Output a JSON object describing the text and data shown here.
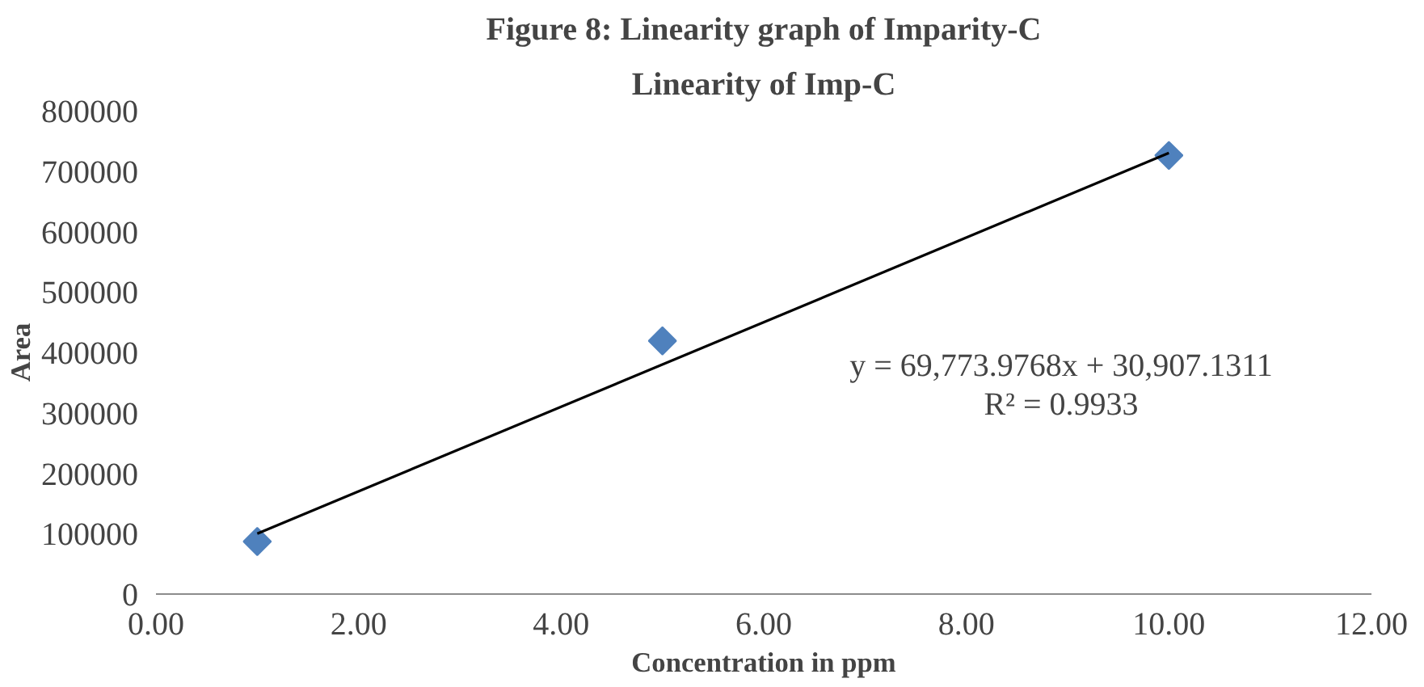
{
  "chart_data": {
    "type": "scatter",
    "title": "Figure 8: Linearity graph of Imparity-C",
    "subtitle": "Linearity of Imp-C",
    "xlabel": "Concentration in ppm",
    "ylabel": "Area",
    "xlim": [
      0,
      12
    ],
    "xticks": [
      {
        "value": 0,
        "label": "0.00"
      },
      {
        "value": 2,
        "label": "2.00"
      },
      {
        "value": 4,
        "label": "4.00"
      },
      {
        "value": 6,
        "label": "6.00"
      },
      {
        "value": 8,
        "label": "8.00"
      },
      {
        "value": 10,
        "label": "10.00"
      },
      {
        "value": 12,
        "label": "12.00"
      }
    ],
    "ylim": [
      0,
      800000
    ],
    "yticks": [
      0,
      100000,
      200000,
      300000,
      400000,
      500000,
      600000,
      700000,
      800000
    ],
    "grid": false,
    "series": [
      {
        "color": "#4f81bd",
        "marker": "diamond",
        "x": [
          1,
          5,
          10
        ],
        "values": [
          87000,
          419000,
          726000
        ]
      },
      {
        "type": "line",
        "marker": "none",
        "color": "#000000",
        "x": [
          1,
          10
        ],
        "values": [
          100000,
          730000
        ]
      }
    ],
    "annotations": [
      "y = 69,773.9768x + 30,907.1311",
      "R² = 0.9933"
    ]
  }
}
